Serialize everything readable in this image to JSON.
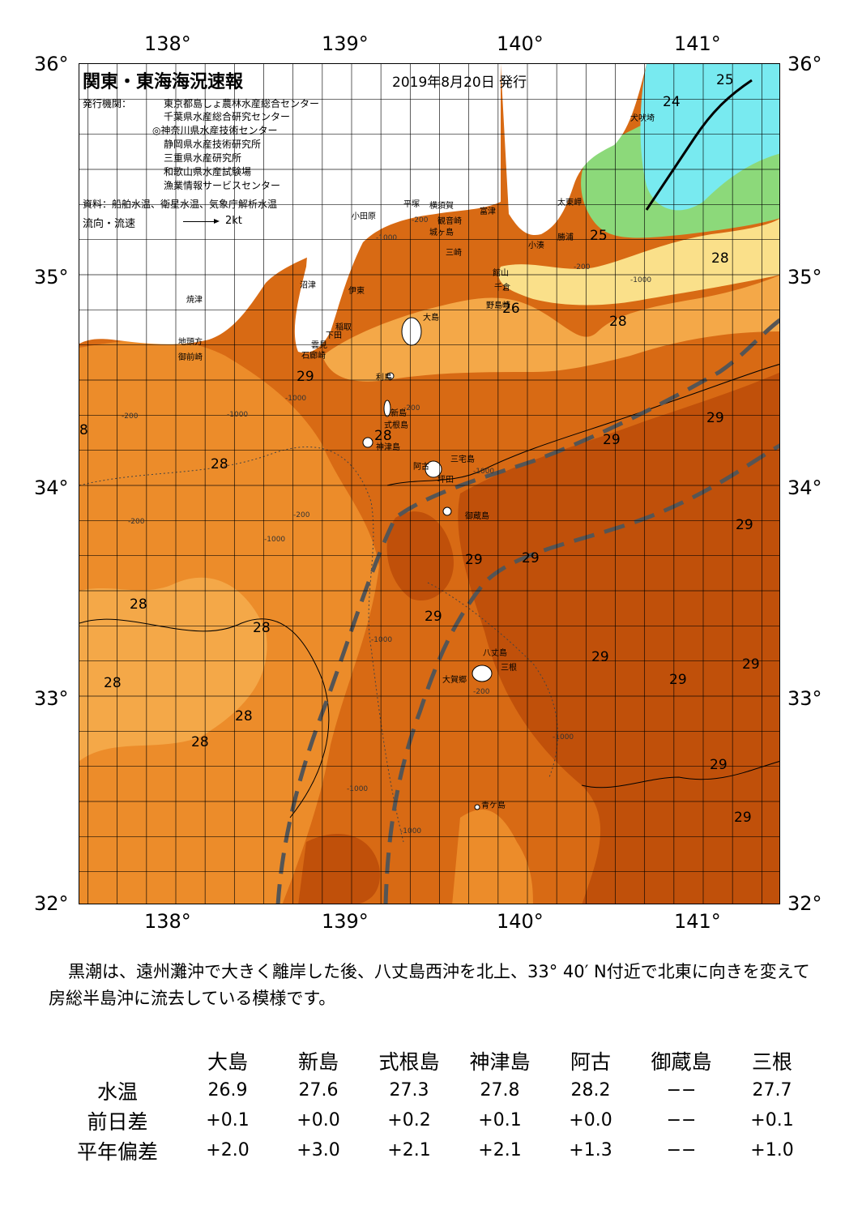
{
  "map": {
    "title": "関東・東海海況速報",
    "date": "2019年8月20日 発行",
    "issuers_label": "発行機関：",
    "issuers": [
      "東京都島しょ農林水産総合センター",
      "千葉県水産総合研究センター",
      "◎神奈川県水産技術センター",
      "静岡県水産技術研究所",
      "三重県水産研究所",
      "和歌山県水産試験場",
      "漁業情報サービスセンター"
    ],
    "source": "資料：船舶水温、衛星水温、気象庁解析水温",
    "legend_label": "流向・流速",
    "legend_value": "2kt",
    "lon_labels": [
      "138°",
      "139°",
      "140°",
      "141°"
    ],
    "lat_labels": [
      "36°",
      "35°",
      "34°",
      "33°",
      "32°"
    ],
    "place_names": [
      "犬吠埼",
      "太東岬",
      "勝浦",
      "小湊",
      "館山",
      "千倉",
      "野島崎",
      "富津",
      "観音崎",
      "横須賀",
      "平塚",
      "小田原",
      "城ヶ島",
      "三崎",
      "沼津",
      "伊東",
      "焼津",
      "地頭方",
      "御前崎",
      "稲取",
      "下田",
      "雲見",
      "石廊崎",
      "大島",
      "利島",
      "新島",
      "式根島",
      "神津島",
      "三宅島",
      "阿古",
      "坪田",
      "御蔵島",
      "八丈島",
      "三根",
      "大賀郷",
      "青ケ島"
    ],
    "temperature_labels": [
      "25",
      "24",
      "25",
      "25",
      "26",
      "28",
      "28",
      "29",
      "29",
      "29",
      "28",
      "28",
      "29",
      "29",
      "29",
      "29",
      "28",
      "28",
      "29",
      "28",
      "28",
      "28",
      "29",
      "29",
      "29",
      "29",
      "8"
    ],
    "depth_labels": [
      "-200",
      "-1000",
      "-200",
      "-1000",
      "-200",
      "-1000",
      "-200",
      "-1000",
      "-200",
      "-1000",
      "-1000",
      "-200",
      "-1000",
      "-1000",
      "-1000",
      "-200",
      "-1000"
    ],
    "colors": {
      "deep_warm": "#c0500a",
      "warm": "#d86a14",
      "mid": "#ec8c2a",
      "light": "#f4a848",
      "pale": "#f8c870",
      "yellow": "#fae08a",
      "green": "#8cd97a",
      "cyan": "#78eaf0",
      "land": "#ffffff",
      "kuroshio_axis": "#555555"
    }
  },
  "description": "黒潮は、遠州灘沖で大きく離岸した後、八丈島西沖を北上、33° 40′ N付近で北東に向きを変えて房総半島沖に流去している模様です。",
  "table": {
    "columns": [
      "大島",
      "新島",
      "式根島",
      "神津島",
      "阿古",
      "御蔵島",
      "三根"
    ],
    "rows": [
      {
        "label": "水温",
        "values": [
          "26.9",
          "27.6",
          "27.3",
          "27.8",
          "28.2",
          "−−",
          "27.7"
        ]
      },
      {
        "label": "前日差",
        "values": [
          "+0.1",
          "+0.0",
          "+0.2",
          "+0.1",
          "+0.0",
          "−−",
          "+0.1"
        ]
      },
      {
        "label": "平年偏差",
        "values": [
          "+2.0",
          "+3.0",
          "+2.1",
          "+2.1",
          "+1.3",
          "−−",
          "+1.0"
        ]
      }
    ]
  }
}
